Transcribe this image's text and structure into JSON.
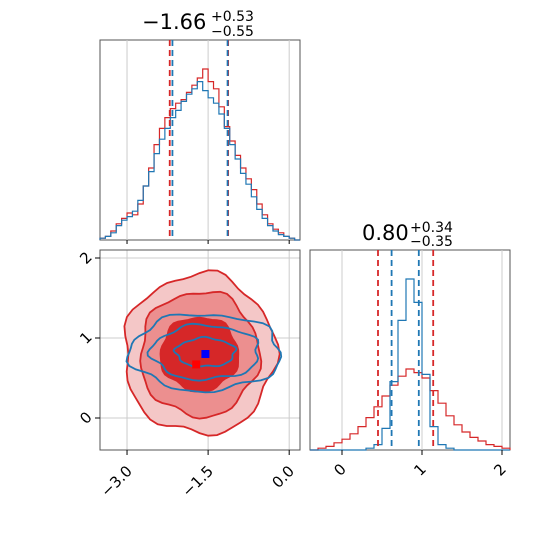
{
  "colors": {
    "red": "#d62728",
    "blue": "#1f77b4",
    "grid": "#cccccc",
    "axis": "#555555",
    "red_fill_outer": "#f4c7c7",
    "red_fill_mid": "#ec8f8f",
    "red_fill_inner": "#d62728"
  },
  "chart_data": [
    {
      "type": "histogram",
      "panel": "top-left",
      "title": {
        "main": "−1.66",
        "plus": "+0.53",
        "minus": "−0.55"
      },
      "xlim": [
        -3.5,
        0.2
      ],
      "grid": true,
      "quantiles": {
        "red": [
          -2.21,
          -1.13
        ],
        "blue": [
          -2.16,
          -1.14
        ]
      },
      "series": [
        {
          "color": "red",
          "x": [
            -3.5,
            -3.4,
            -3.3,
            -3.2,
            -3.1,
            -3.0,
            -2.9,
            -2.8,
            -2.7,
            -2.6,
            -2.5,
            -2.4,
            -2.3,
            -2.2,
            -2.1,
            -2.0,
            -1.9,
            -1.8,
            -1.7,
            -1.6,
            -1.5,
            -1.4,
            -1.3,
            -1.2,
            -1.1,
            -1.0,
            -0.9,
            -0.8,
            -0.7,
            -0.6,
            -0.5,
            -0.4,
            -0.3,
            -0.2,
            -0.1,
            0.0,
            0.1
          ],
          "y": [
            0.01,
            0.02,
            0.05,
            0.09,
            0.12,
            0.15,
            0.14,
            0.2,
            0.3,
            0.4,
            0.53,
            0.62,
            0.68,
            0.73,
            0.76,
            0.78,
            0.82,
            0.86,
            0.9,
            0.95,
            0.88,
            0.84,
            0.74,
            0.63,
            0.55,
            0.47,
            0.4,
            0.34,
            0.28,
            0.2,
            0.14,
            0.09,
            0.06,
            0.04,
            0.02,
            0.01,
            0.0
          ]
        },
        {
          "color": "blue",
          "x": [
            -3.5,
            -3.4,
            -3.3,
            -3.2,
            -3.1,
            -3.0,
            -2.9,
            -2.8,
            -2.7,
            -2.6,
            -2.5,
            -2.4,
            -2.3,
            -2.2,
            -2.1,
            -2.0,
            -1.9,
            -1.8,
            -1.7,
            -1.6,
            -1.5,
            -1.4,
            -1.3,
            -1.2,
            -1.1,
            -1.0,
            -0.9,
            -0.8,
            -0.7,
            -0.6,
            -0.5,
            -0.4,
            -0.3,
            -0.2,
            -0.1,
            0.0,
            0.1
          ],
          "y": [
            0.01,
            0.02,
            0.04,
            0.08,
            0.11,
            0.13,
            0.16,
            0.22,
            0.3,
            0.38,
            0.48,
            0.56,
            0.62,
            0.68,
            0.72,
            0.77,
            0.81,
            0.84,
            0.88,
            0.83,
            0.79,
            0.76,
            0.7,
            0.62,
            0.53,
            0.45,
            0.37,
            0.31,
            0.24,
            0.17,
            0.12,
            0.08,
            0.05,
            0.03,
            0.02,
            0.01,
            0.0
          ]
        }
      ]
    },
    {
      "type": "contour",
      "panel": "bottom-left",
      "xlim": [
        -3.5,
        0.2
      ],
      "ylim": [
        -0.4,
        2.1
      ],
      "xticks": [
        -3.0,
        -1.5,
        0.0
      ],
      "xtick_labels": [
        "−3.0",
        "−1.5",
        "0.0"
      ],
      "yticks": [
        0,
        1,
        2
      ],
      "ytick_labels": [
        "0",
        "1",
        "2"
      ],
      "grid": true,
      "markers": [
        {
          "color": "blue",
          "x": -1.55,
          "y": 0.8
        },
        {
          "color": "red",
          "x": -1.72,
          "y": 0.67
        }
      ],
      "red_contours": [
        {
          "level": "outer",
          "cx": -1.66,
          "cy": 0.8,
          "rx": 1.4,
          "ry": 1.0
        },
        {
          "level": "mid",
          "cx": -1.66,
          "cy": 0.8,
          "rx": 1.1,
          "ry": 0.78
        },
        {
          "level": "inner",
          "cx": -1.66,
          "cy": 0.8,
          "rx": 0.72,
          "ry": 0.46
        }
      ],
      "blue_contours": [
        {
          "level": "outer",
          "cx": -1.55,
          "cy": 0.82,
          "rx": 1.4,
          "ry": 0.48
        },
        {
          "level": "mid",
          "cx": -1.55,
          "cy": 0.82,
          "rx": 1.0,
          "ry": 0.34
        },
        {
          "level": "inner",
          "cx": -1.55,
          "cy": 0.82,
          "rx": 0.55,
          "ry": 0.18
        }
      ]
    },
    {
      "type": "histogram",
      "panel": "bottom-right",
      "title": {
        "main": "0.80",
        "plus": "+0.34",
        "minus": "−0.35"
      },
      "xlim": [
        -0.4,
        2.1
      ],
      "xticks": [
        0,
        1,
        2
      ],
      "xtick_labels": [
        "0",
        "1",
        "2"
      ],
      "grid": true,
      "quantiles": {
        "red": [
          0.45,
          1.14
        ],
        "blue": [
          0.62,
          0.96
        ]
      },
      "series": [
        {
          "color": "red",
          "x": [
            -0.4,
            -0.3,
            -0.2,
            -0.1,
            0.0,
            0.1,
            0.2,
            0.3,
            0.4,
            0.5,
            0.6,
            0.7,
            0.8,
            0.9,
            1.0,
            1.1,
            1.2,
            1.3,
            1.4,
            1.5,
            1.6,
            1.7,
            1.8,
            1.9,
            2.0
          ],
          "y": [
            0.0,
            0.01,
            0.02,
            0.04,
            0.06,
            0.09,
            0.13,
            0.18,
            0.24,
            0.3,
            0.36,
            0.41,
            0.45,
            0.43,
            0.4,
            0.33,
            0.26,
            0.19,
            0.14,
            0.1,
            0.07,
            0.05,
            0.03,
            0.02,
            0.01
          ]
        },
        {
          "color": "blue",
          "x": [
            -0.4,
            -0.3,
            -0.2,
            -0.1,
            0.0,
            0.1,
            0.2,
            0.3,
            0.4,
            0.5,
            0.6,
            0.7,
            0.8,
            0.9,
            1.0,
            1.1,
            1.2,
            1.3,
            1.4,
            1.5,
            1.6,
            1.7,
            1.8,
            1.9,
            2.0
          ],
          "y": [
            0.0,
            0.0,
            0.0,
            0.0,
            0.0,
            0.0,
            0.0,
            0.01,
            0.03,
            0.12,
            0.38,
            0.72,
            0.95,
            0.82,
            0.42,
            0.13,
            0.03,
            0.01,
            0.0,
            0.0,
            0.0,
            0.0,
            0.0,
            0.0,
            0.0
          ]
        }
      ]
    }
  ]
}
